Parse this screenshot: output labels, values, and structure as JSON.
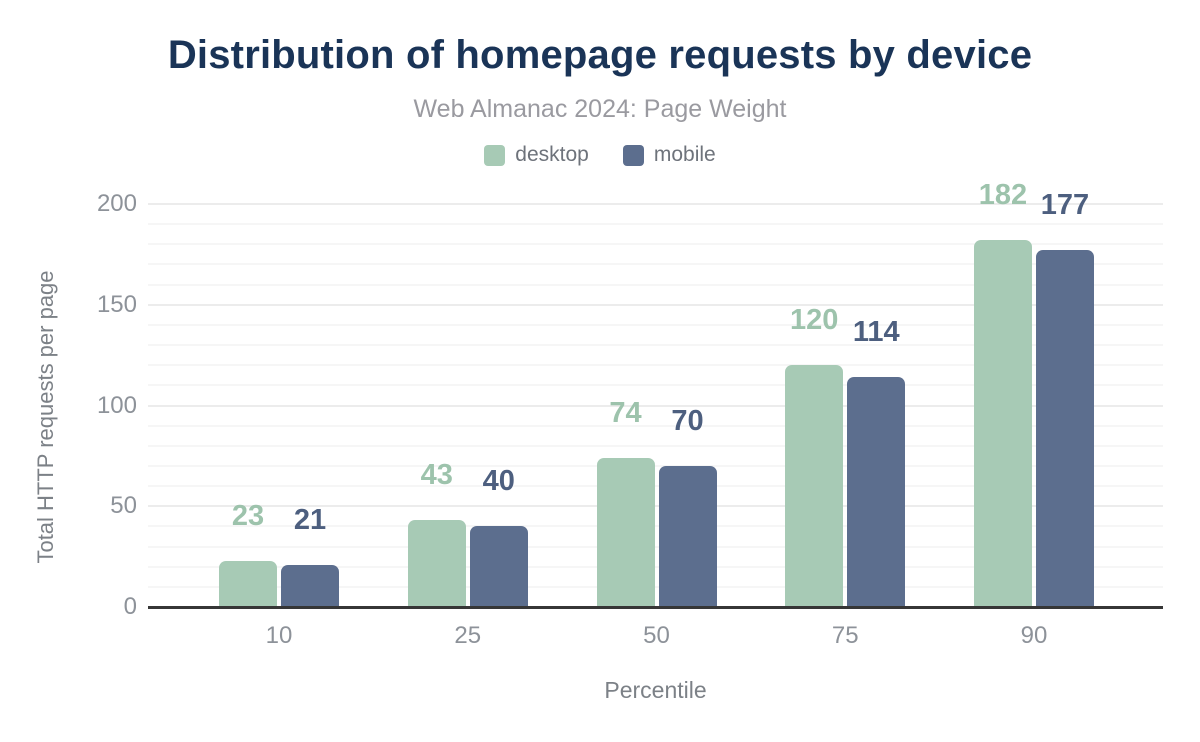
{
  "chart_data": {
    "type": "bar",
    "title": "Distribution of homepage requests by device",
    "subtitle": "Web Almanac 2024: Page Weight",
    "xlabel": "Percentile",
    "ylabel": "Total HTTP requests per page",
    "categories": [
      "10",
      "25",
      "50",
      "75",
      "90"
    ],
    "series": [
      {
        "name": "desktop",
        "values": [
          23,
          43,
          74,
          120,
          182
        ],
        "color": "#a7cab5",
        "label_color": "#9dc3ac"
      },
      {
        "name": "mobile",
        "values": [
          21,
          40,
          70,
          114,
          177
        ],
        "color": "#5c6e8e",
        "label_color": "#4d5f7f"
      }
    ],
    "ylim": [
      0,
      200
    ],
    "yticks": [
      0,
      50,
      100,
      150,
      200
    ],
    "minor_tick_step": 10,
    "grid": true,
    "legend_position": "top",
    "data_labels_shown": true
  },
  "colors": {
    "title": "#1a3457",
    "subtitle": "#9a9aa0",
    "legend_text": "#6e737b",
    "tick_text": "#8d9299",
    "axis_title_text": "#7c8187",
    "grid_major": "#ececec",
    "grid_minor": "#f6f6f6",
    "baseline": "#363636",
    "background": "#ffffff"
  }
}
